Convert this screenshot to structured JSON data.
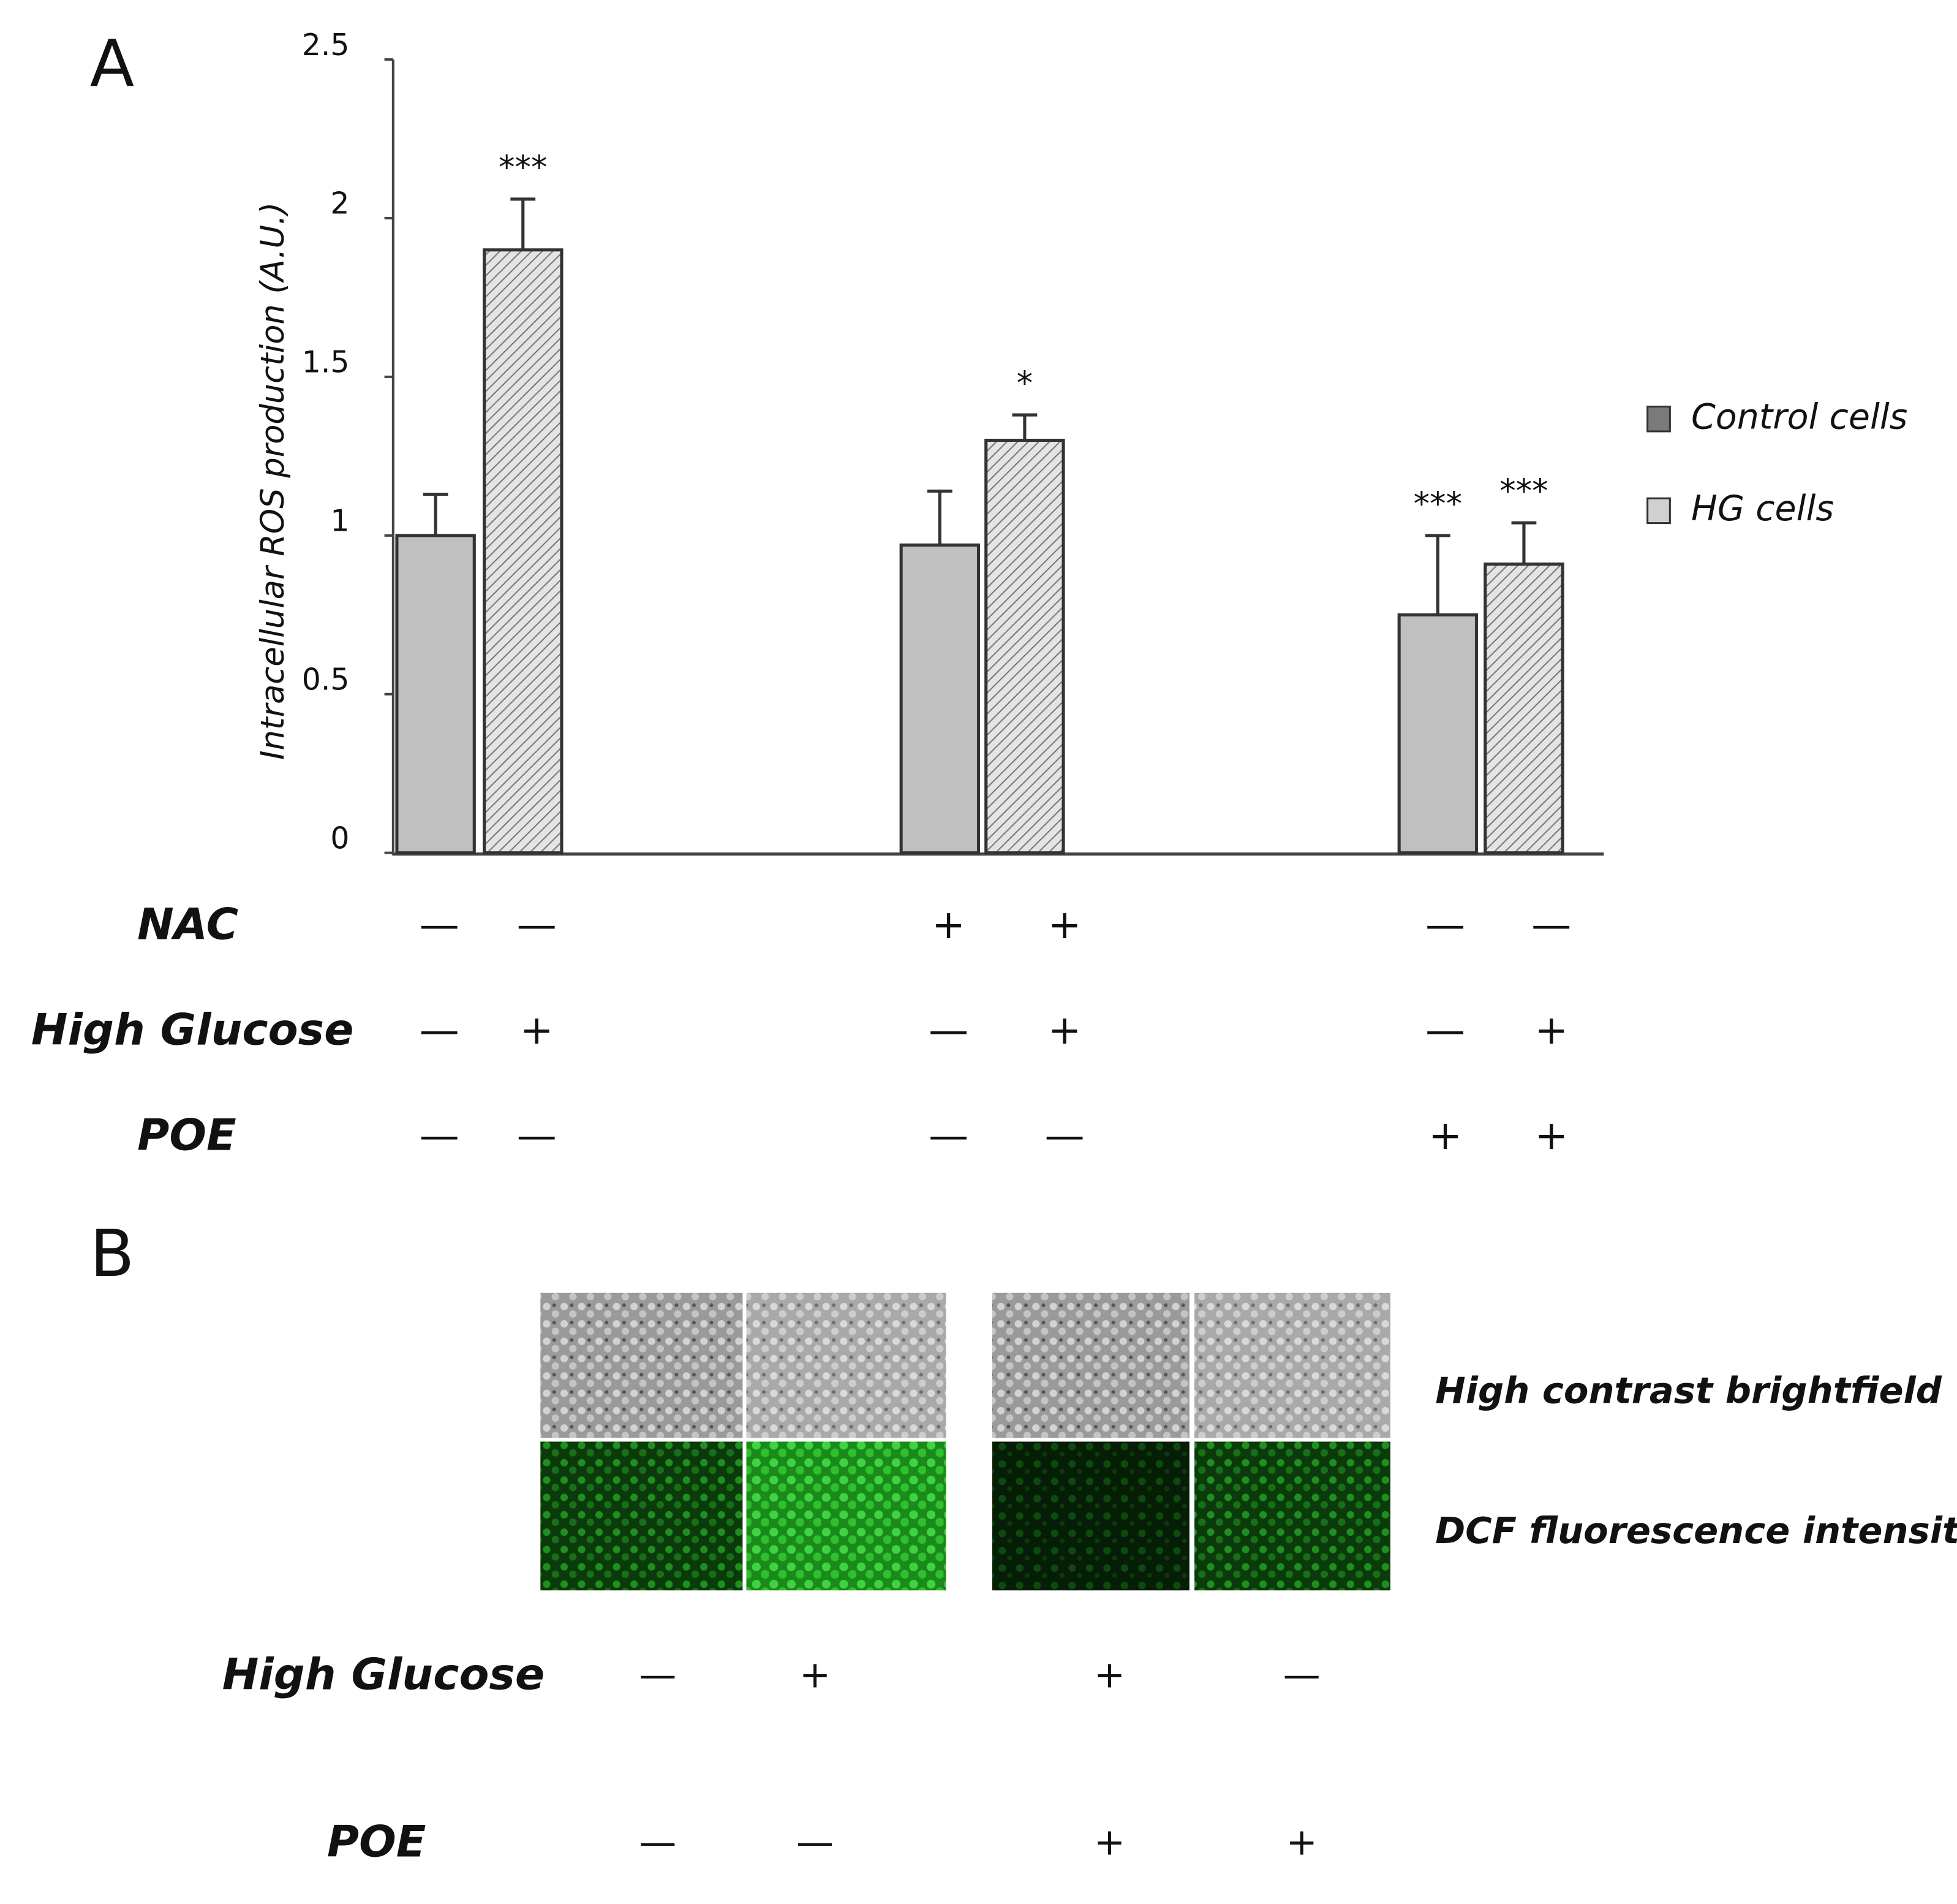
{
  "panel_labels": [
    "A",
    "B"
  ],
  "chart_data": {
    "type": "bar",
    "y_label": "Intracellular ROS production (A.U.)",
    "categories": [
      null,
      null,
      null
    ],
    "series": [
      {
        "name": "Control cells",
        "color": "#c0c0c0",
        "legend_color": "#7a7a7a",
        "values": [
          1.0,
          0.97,
          0.75
        ],
        "errors": [
          0.13,
          0.17,
          0.25
        ],
        "annotations": [
          null,
          null,
          "***"
        ]
      },
      {
        "name": "HG cells",
        "color": "#d9d9d9",
        "legend_color": "#d0d0d0",
        "hatch": true,
        "values": [
          1.9,
          1.3,
          0.91
        ],
        "errors": [
          0.16,
          0.08,
          0.13
        ],
        "annotations": [
          "***",
          "*",
          "***"
        ]
      }
    ],
    "ylim": [
      0,
      2.5
    ],
    "yticks": [
      0,
      0.5,
      1,
      1.5,
      2,
      2.5
    ],
    "grid": false,
    "legend": "right",
    "treatments": [
      {
        "label": "NAC",
        "signs": [
          "—",
          "—",
          "+",
          "+",
          "—",
          "—"
        ]
      },
      {
        "label": "High Glucose",
        "signs": [
          "—",
          "+",
          "—",
          "+",
          "—",
          "+"
        ]
      },
      {
        "label": "POE",
        "signs": [
          "—",
          "—",
          "—",
          "—",
          "+",
          "+"
        ]
      }
    ]
  },
  "panel_b": {
    "row_labels": [
      "High contrast brightfield",
      "DCF fluorescence intensity"
    ],
    "treatments": [
      {
        "label": "High Glucose",
        "signs": [
          "—",
          "+",
          "+",
          "—"
        ]
      },
      {
        "label": "POE",
        "signs": [
          "—",
          "—",
          "+",
          "+"
        ]
      }
    ]
  }
}
